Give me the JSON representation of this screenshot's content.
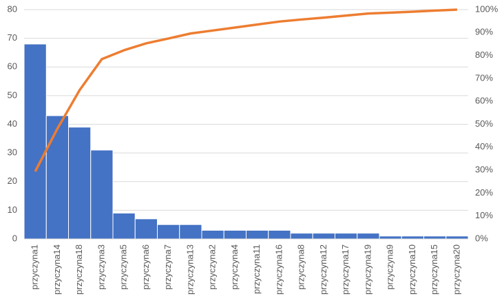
{
  "chart_data": {
    "type": "bar",
    "categories": [
      "przyczyna1",
      "przyczyna14",
      "przyczyna18",
      "przyczyna3",
      "przyczyna5",
      "przyczyna6",
      "przyczyna7",
      "przyczyna13",
      "przyczyna2",
      "przyczyna4",
      "przyczyna11",
      "przyczyna16",
      "przyczyna8",
      "przyczyna12",
      "przyczyna17",
      "przyczyna19",
      "przyczyna9",
      "przyczyna10",
      "przyczyna15",
      "przyczyna20"
    ],
    "series": [
      {
        "type": "bar",
        "color": "#4472c4",
        "values": [
          68,
          43,
          39,
          31,
          9,
          7,
          5,
          5,
          3,
          3,
          3,
          3,
          2,
          2,
          2,
          2,
          1,
          1,
          1,
          1
        ]
      },
      {
        "type": "line",
        "axis": "y2",
        "color": "#ed7d31",
        "values": [
          29.4,
          48.1,
          64.9,
          78.4,
          82.3,
          85.3,
          87.4,
          89.6,
          90.9,
          92.2,
          93.5,
          94.8,
          95.7,
          96.5,
          97.4,
          98.3,
          98.7,
          99.1,
          99.6,
          100
        ]
      }
    ],
    "ylim": [
      0,
      80
    ],
    "yticks": [
      0,
      10,
      20,
      30,
      40,
      50,
      60,
      70,
      80
    ],
    "y2lim": [
      0,
      100
    ],
    "y2ticks": [
      {
        "value": 0,
        "label": "0%"
      },
      {
        "value": 10,
        "label": "10%"
      },
      {
        "value": 20,
        "label": "20%"
      },
      {
        "value": 30,
        "label": "30%"
      },
      {
        "value": 40,
        "label": "40%"
      },
      {
        "value": 50,
        "label": "50%"
      },
      {
        "value": 60,
        "label": "60%"
      },
      {
        "value": 70,
        "label": "70%"
      },
      {
        "value": 80,
        "label": "80%"
      },
      {
        "value": 90,
        "label": "90%"
      },
      {
        "value": 100,
        "label": "100%"
      }
    ],
    "grid": true
  }
}
